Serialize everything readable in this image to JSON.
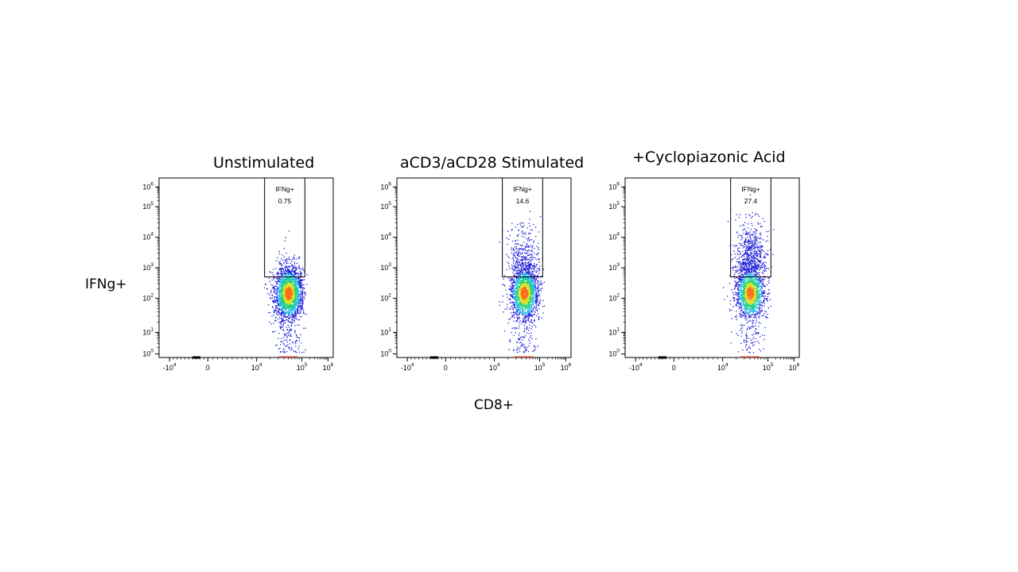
{
  "figure": {
    "x_axis_title": "CD8+",
    "y_axis_title": "IFNg+"
  },
  "axis_ticks": {
    "x": [
      {
        "base": "-10",
        "exp": "4"
      },
      {
        "base": "0",
        "exp": ""
      },
      {
        "base": "10",
        "exp": "4"
      },
      {
        "base": "10",
        "exp": "5"
      },
      {
        "base": "10",
        "exp": "6"
      }
    ],
    "y": [
      {
        "base": "10",
        "exp": "0"
      },
      {
        "base": "10",
        "exp": "1"
      },
      {
        "base": "10",
        "exp": "2"
      },
      {
        "base": "10",
        "exp": "3"
      },
      {
        "base": "10",
        "exp": "4"
      },
      {
        "base": "10",
        "exp": "5"
      },
      {
        "base": "10",
        "exp": "6"
      }
    ]
  },
  "colors": {
    "density_low": "#1b1bd8",
    "density_mid_low": "#16b8e8",
    "density_mid": "#1fd07a",
    "density_high": "#d8e21a",
    "density_peak": "#ff6a1a",
    "axis": "#000000",
    "negative_events": "#d2462f"
  },
  "chart_data": [
    {
      "type": "scatter",
      "subtype": "flow-cytometry-density-plot",
      "title": "Unstimulated",
      "xlabel": "CD8+",
      "ylabel": "IFNg+",
      "x_scale": "biexponential",
      "y_scale": "log",
      "xlim": [
        -10000,
        1000000
      ],
      "ylim": [
        1,
        1000000
      ],
      "population_center": {
        "x": 50000,
        "y": 150
      },
      "gate": {
        "name": "IFNg+",
        "percent": "0.75",
        "x_range": [
          15000,
          130000
        ],
        "y_range": [
          500,
          1000000
        ]
      }
    },
    {
      "type": "scatter",
      "subtype": "flow-cytometry-density-plot",
      "title": "aCD3/aCD28 Stimulated",
      "xlabel": "CD8+",
      "ylabel": "IFNg+",
      "x_scale": "biexponential",
      "y_scale": "log",
      "xlim": [
        -10000,
        1000000
      ],
      "ylim": [
        1,
        1000000
      ],
      "population_center": {
        "x": 45000,
        "y": 150
      },
      "gate": {
        "name": "IFNg+",
        "percent": "14.6",
        "x_range": [
          15000,
          130000
        ],
        "y_range": [
          500,
          1000000
        ]
      }
    },
    {
      "type": "scatter",
      "subtype": "flow-cytometry-density-plot",
      "title": "+Cyclopiazonic Acid",
      "xlabel": "CD8+",
      "ylabel": "IFNg+",
      "x_scale": "biexponential",
      "y_scale": "log",
      "xlim": [
        -10000,
        1000000
      ],
      "ylim": [
        1,
        1000000
      ],
      "population_center": {
        "x": 40000,
        "y": 150
      },
      "gate": {
        "name": "IFNg+",
        "percent": "27.4",
        "x_range": [
          15000,
          130000
        ],
        "y_range": [
          500,
          1000000
        ]
      }
    }
  ]
}
